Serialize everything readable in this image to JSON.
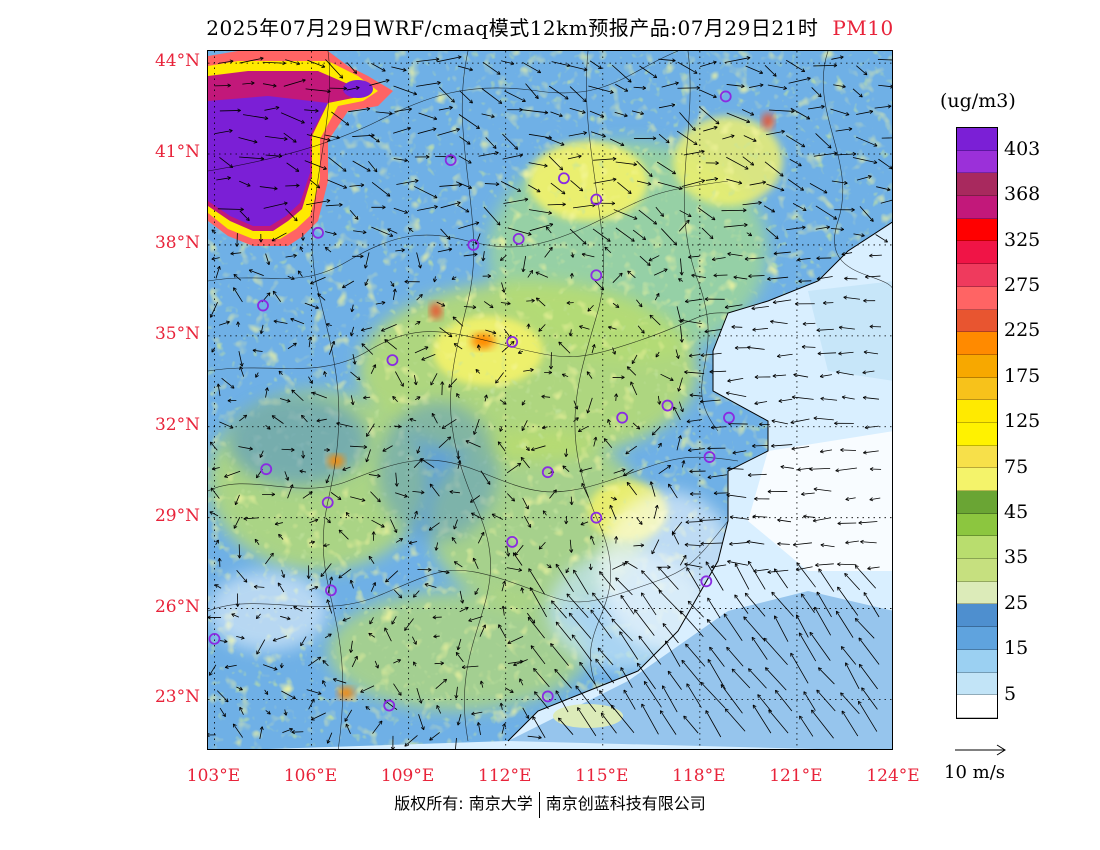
{
  "title": {
    "text": "2025年07月29日WRF/cmaq模式12km预报产品:07月29日21时",
    "variable": "PM10"
  },
  "map": {
    "lat_labels": [
      "44°N",
      "41°N",
      "38°N",
      "35°N",
      "32°N",
      "29°N",
      "26°N",
      "23°N"
    ],
    "lon_labels": [
      "103°E",
      "106°E",
      "109°E",
      "112°E",
      "115°E",
      "118°E",
      "121°E",
      "124°E"
    ],
    "lat_values": [
      44,
      41,
      38,
      35,
      32,
      29,
      26,
      23
    ],
    "lon_values": [
      103,
      106,
      109,
      112,
      115,
      118,
      121,
      124
    ],
    "lon_range": [
      102.8,
      124
    ],
    "lat_range": [
      21.3,
      44.4
    ],
    "station_markers": [
      [
        118.8,
        42.9
      ],
      [
        110.3,
        40.8
      ],
      [
        113.8,
        40.2
      ],
      [
        114.8,
        39.5
      ],
      [
        106.2,
        38.4
      ],
      [
        111.0,
        38.0
      ],
      [
        112.4,
        38.2
      ],
      [
        114.8,
        37.0
      ],
      [
        104.5,
        36.0
      ],
      [
        108.5,
        34.2
      ],
      [
        112.2,
        34.8
      ],
      [
        115.6,
        32.3
      ],
      [
        117.0,
        32.7
      ],
      [
        118.9,
        32.3
      ],
      [
        118.3,
        31.0
      ],
      [
        113.3,
        30.5
      ],
      [
        104.6,
        30.6
      ],
      [
        106.5,
        29.5
      ],
      [
        114.8,
        29.0
      ],
      [
        112.2,
        28.2
      ],
      [
        106.6,
        26.6
      ],
      [
        118.2,
        26.9
      ],
      [
        103.0,
        25.0
      ],
      [
        108.4,
        22.8
      ],
      [
        113.3,
        23.1
      ]
    ],
    "colors": {
      "land_border": "#000000",
      "wind_arrow": "#000000",
      "station_ring": "#8a2be2",
      "ocean_base": "#d9efff"
    }
  },
  "legend": {
    "unit": "(ug/m3)",
    "colors": [
      "#7b1fd6",
      "#9b30d9",
      "#a8295e",
      "#c2187a",
      "#ff0000",
      "#f01446",
      "#ef3a5d",
      "#ff6464",
      "#e85530",
      "#ff8a00",
      "#f7a800",
      "#f7c21b",
      "#ffea00",
      "#fff200",
      "#f7e04a",
      "#f4f36a",
      "#6aa534",
      "#8cc63f",
      "#b9dd6e",
      "#c6e07f",
      "#dcebb9",
      "#4e8fcf",
      "#5fa3de",
      "#9bd0f2",
      "#c2e4f7",
      "#ffffff"
    ],
    "labels": [
      "403",
      "368",
      "325",
      "275",
      "225",
      "175",
      "125",
      "75",
      "45",
      "35",
      "25",
      "15",
      "5"
    ],
    "wind_key_label": "10 m/s"
  },
  "footer": {
    "left": "版权所有: 南京大学",
    "right": "南京创蓝科技有限公司"
  }
}
